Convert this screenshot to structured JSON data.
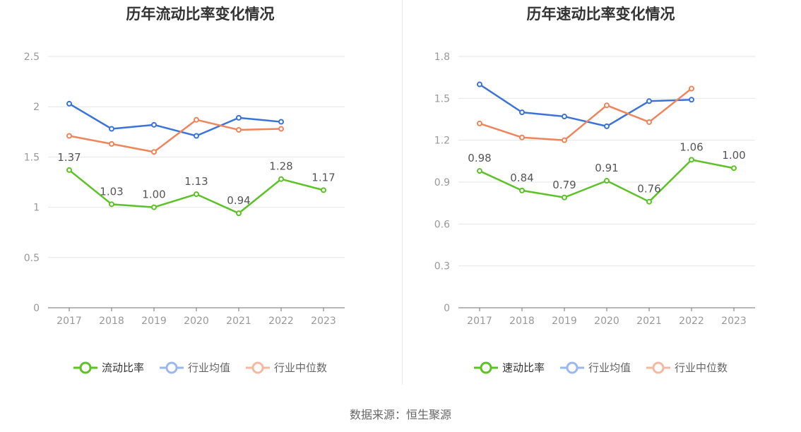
{
  "source": "数据来源：恒生聚源",
  "colors": {
    "main": "#5cc226",
    "avg": "#3a73d9",
    "median": "#f0845a"
  },
  "chart_data": [
    {
      "type": "line",
      "title": "历年流动比率变化情况",
      "categories": [
        "2017",
        "2018",
        "2019",
        "2020",
        "2021",
        "2022",
        "2023"
      ],
      "ylim": [
        0,
        2.5
      ],
      "yticks": [
        "0",
        "0.5",
        "1",
        "1.5",
        "2",
        "2.5"
      ],
      "ytick_values": [
        0,
        0.5,
        1,
        1.5,
        2,
        2.5
      ],
      "grid": true,
      "legend_position": "bottom",
      "series": [
        {
          "name": "流动比率",
          "values": [
            1.37,
            1.03,
            1.0,
            1.13,
            0.94,
            1.28,
            1.17
          ],
          "labels": [
            "1.37",
            "1.03",
            "1.00",
            "1.13",
            "0.94",
            "1.28",
            "1.17"
          ],
          "color": "#5cc226"
        },
        {
          "name": "行业均值",
          "values": [
            2.03,
            1.78,
            1.82,
            1.71,
            1.89,
            1.85,
            null
          ],
          "color": "#3a73d9"
        },
        {
          "name": "行业中位数",
          "values": [
            1.71,
            1.63,
            1.55,
            1.87,
            1.77,
            1.78,
            null
          ],
          "color": "#f0845a"
        }
      ]
    },
    {
      "type": "line",
      "title": "历年速动比率变化情况",
      "categories": [
        "2017",
        "2018",
        "2019",
        "2020",
        "2021",
        "2022",
        "2023"
      ],
      "ylim": [
        0,
        1.8
      ],
      "yticks": [
        "0",
        "0.3",
        "0.6",
        "0.9",
        "1.2",
        "1.5",
        "1.8"
      ],
      "ytick_values": [
        0,
        0.3,
        0.6,
        0.9,
        1.2,
        1.5,
        1.8
      ],
      "grid": true,
      "legend_position": "bottom",
      "series": [
        {
          "name": "速动比率",
          "values": [
            0.98,
            0.84,
            0.79,
            0.91,
            0.76,
            1.06,
            1.0
          ],
          "labels": [
            "0.98",
            "0.84",
            "0.79",
            "0.91",
            "0.76",
            "1.06",
            "1.00"
          ],
          "color": "#5cc226"
        },
        {
          "name": "行业均值",
          "values": [
            1.6,
            1.4,
            1.37,
            1.3,
            1.48,
            1.49,
            null
          ],
          "color": "#3a73d9"
        },
        {
          "name": "行业中位数",
          "values": [
            1.32,
            1.22,
            1.2,
            1.45,
            1.33,
            1.57,
            null
          ],
          "color": "#f0845a"
        }
      ]
    }
  ]
}
